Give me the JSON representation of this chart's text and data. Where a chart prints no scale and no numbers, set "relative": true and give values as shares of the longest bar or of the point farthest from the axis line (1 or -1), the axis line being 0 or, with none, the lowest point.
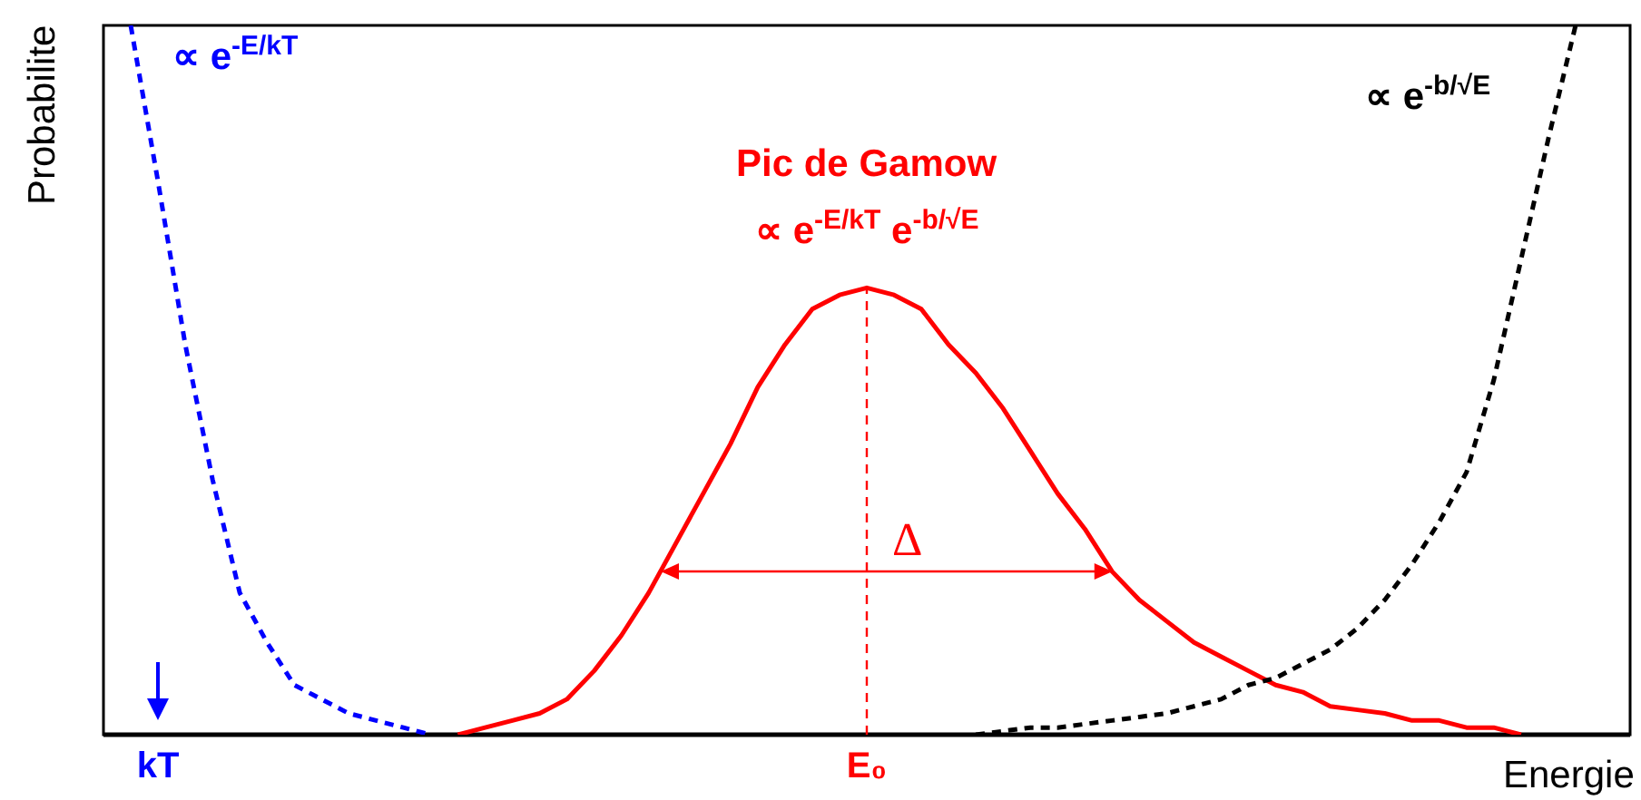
{
  "chart_data": {
    "type": "line",
    "relative": true,
    "xlabel": "Energie",
    "ylabel": "Probabilite",
    "categories": [
      null,
      null,
      "kT",
      null,
      null,
      null,
      null,
      null,
      null,
      null,
      null,
      null,
      null,
      null,
      null,
      null,
      null,
      null,
      null,
      null,
      null,
      null,
      null,
      null,
      null,
      null,
      null,
      null,
      "E₀",
      null,
      null,
      null,
      null,
      null,
      null,
      null,
      null,
      null,
      null,
      null,
      null,
      null,
      null,
      null,
      null,
      null,
      null,
      null,
      null,
      null,
      null,
      null,
      null,
      null,
      null,
      null,
      null
    ],
    "series": [
      {
        "color": "#0000ff",
        "line_style": "dashed",
        "values": [
          null,
          1,
          0.78,
          0.55,
          0.36,
          0.2,
          0.13,
          0.07,
          0.05,
          0.03,
          0.02,
          0.01,
          0,
          null,
          null,
          null,
          null,
          null,
          null,
          null,
          null,
          null,
          null,
          null,
          null,
          null,
          null,
          null,
          null,
          null,
          null,
          null,
          null,
          null,
          null,
          null,
          null,
          null,
          null,
          null,
          null,
          null,
          null,
          null,
          null,
          null,
          null,
          null,
          null,
          null,
          null,
          null,
          null,
          null,
          null,
          null,
          null
        ]
      },
      {
        "color": "#000000",
        "line_style": "dashed",
        "values": [
          null,
          null,
          null,
          null,
          null,
          null,
          null,
          null,
          null,
          null,
          null,
          null,
          null,
          null,
          null,
          null,
          null,
          null,
          null,
          null,
          null,
          null,
          null,
          null,
          null,
          null,
          null,
          null,
          null,
          null,
          null,
          null,
          0,
          0.005,
          0.01,
          0.01,
          0.015,
          0.02,
          0.025,
          0.03,
          0.04,
          0.05,
          0.07,
          0.08,
          0.1,
          0.12,
          0.15,
          0.19,
          0.24,
          0.3,
          0.37,
          0.5,
          0.67,
          0.84,
          1,
          null,
          null
        ]
      },
      {
        "color": "#ff0000",
        "line_style": "solid",
        "values": [
          null,
          null,
          null,
          null,
          null,
          null,
          null,
          null,
          null,
          null,
          null,
          null,
          null,
          0,
          0.01,
          0.02,
          0.03,
          0.05,
          0.09,
          0.14,
          0.2,
          0.27,
          0.34,
          0.41,
          0.49,
          0.55,
          0.6,
          0.62,
          0.63,
          0.62,
          0.6,
          0.55,
          0.51,
          0.46,
          0.4,
          0.34,
          0.29,
          0.23,
          0.19,
          0.16,
          0.13,
          0.11,
          0.09,
          0.07,
          0.06,
          0.04,
          0.035,
          0.03,
          0.02,
          0.02,
          0.01,
          0.01,
          0,
          null,
          null,
          null,
          null
        ]
      }
    ],
    "ref_lines": [
      {
        "axis": "x",
        "value": "E₀",
        "color": "#ff0000",
        "line_style": "dashed"
      }
    ],
    "annotations": [
      "∝ e$^{-E/kT}$",
      "∝ e$^{-b/√E}$",
      "Pic de Gamow",
      "∝ e$^{-E/kT}$ e$^{-b/√E}$",
      "Δ"
    ]
  }
}
